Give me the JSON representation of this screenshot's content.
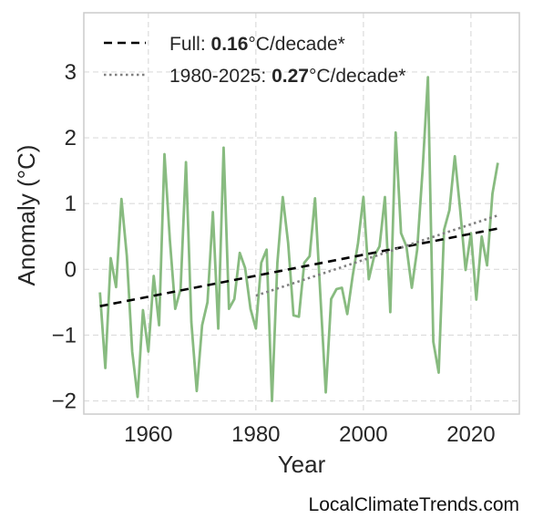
{
  "chart_data": {
    "type": "line",
    "title": "",
    "xlabel": "Year",
    "ylabel": "Anomaly (°C)",
    "xlim": [
      1948,
      2029
    ],
    "ylim": [
      -2.2,
      3.9
    ],
    "x_ticks": [
      1960,
      1980,
      2000,
      2020
    ],
    "y_ticks": [
      -2,
      -1,
      0,
      1,
      2,
      3
    ],
    "y_tick_labels": [
      "−2",
      "−1",
      "0",
      "1",
      "2",
      "3"
    ],
    "grid": true,
    "legend_position": "top-left",
    "series": [
      {
        "kind": "data",
        "color": "#88bb80",
        "x": [
          1951,
          1952,
          1953,
          1954,
          1955,
          1956,
          1957,
          1958,
          1959,
          1960,
          1961,
          1962,
          1963,
          1964,
          1965,
          1966,
          1967,
          1968,
          1969,
          1970,
          1971,
          1972,
          1973,
          1974,
          1975,
          1976,
          1977,
          1978,
          1979,
          1980,
          1981,
          1982,
          1983,
          1984,
          1985,
          1986,
          1987,
          1988,
          1989,
          1990,
          1991,
          1992,
          1993,
          1994,
          1995,
          1996,
          1997,
          1998,
          1999,
          2000,
          2001,
          2002,
          2003,
          2004,
          2005,
          2006,
          2007,
          2008,
          2009,
          2010,
          2011,
          2012,
          2013,
          2014,
          2015,
          2016,
          2017,
          2018,
          2019,
          2020,
          2021,
          2022,
          2023,
          2024,
          2025
        ],
        "y": [
          -0.35,
          -1.5,
          0.17,
          -0.27,
          1.07,
          0.2,
          -1.25,
          -1.94,
          -0.62,
          -1.25,
          -0.1,
          -0.85,
          1.75,
          0.45,
          -0.6,
          -0.3,
          1.63,
          -0.8,
          -1.85,
          -0.85,
          -0.5,
          0.87,
          -0.9,
          1.85,
          -0.6,
          -0.45,
          0.25,
          0.02,
          -0.6,
          -0.9,
          0.1,
          0.3,
          -2.0,
          0.1,
          1.1,
          0.4,
          -0.7,
          -0.72,
          0.1,
          0.2,
          1.08,
          -0.4,
          -1.87,
          -0.45,
          -0.3,
          -0.28,
          -0.68,
          -0.1,
          0.4,
          1.1,
          -0.15,
          0.2,
          0.35,
          1.1,
          -0.65,
          2.08,
          0.55,
          0.35,
          -0.28,
          0.3,
          1.5,
          2.92,
          -1.1,
          -1.57,
          0.6,
          0.9,
          1.72,
          0.9,
          -0.01,
          0.55,
          -0.46,
          0.5,
          0.06,
          1.15,
          1.62
        ]
      },
      {
        "kind": "trend",
        "name": "Full",
        "rate": "0.16",
        "unit": "°C/decade*",
        "color": "#000000",
        "dash": "dashed",
        "x": [
          1951,
          2025
        ],
        "y": [
          -0.56,
          0.62
        ]
      },
      {
        "kind": "trend",
        "name": "1980-2025",
        "rate": "0.27",
        "unit": "°C/decade*",
        "color": "#808080",
        "dash": "dotted",
        "x": [
          1980,
          2025
        ],
        "y": [
          -0.4,
          0.82
        ]
      }
    ]
  },
  "legend": {
    "full_prefix": "Full: ",
    "full_rate": "0.16",
    "full_suffix": "°C/decade*",
    "recent_prefix": "1980-2025: ",
    "recent_rate": "0.27",
    "recent_suffix": "°C/decade*"
  },
  "credit": "LocalClimateTrends.com",
  "colors": {
    "axes_edge": "#cccccc",
    "grid": "#dcdcdc",
    "text": "#262626"
  }
}
